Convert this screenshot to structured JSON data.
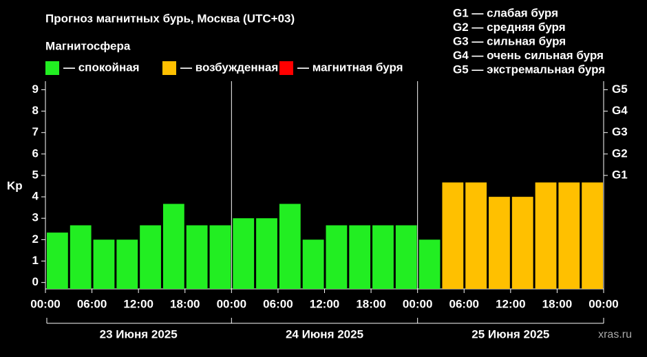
{
  "chart_data": {
    "type": "bar",
    "title": "Прогноз магнитных бурь, Москва (UTC+03)",
    "legend_title": "Магнитосфера",
    "legend": [
      {
        "color": "#22ee22",
        "label": "— спокойная"
      },
      {
        "color": "#ffc000",
        "label": "— возбужденная"
      },
      {
        "color": "#ff0000",
        "label": "— магнитная буря"
      }
    ],
    "scale_legend": [
      "G1 — слабая буря",
      "G2 — средняя буря",
      "G3 — сильная буря",
      "G4 — очень сильная буря",
      "G5 — экстремальная буря"
    ],
    "y_label": "Kp",
    "x": [
      0,
      3,
      6,
      9,
      12,
      15,
      18,
      21,
      24,
      27,
      30,
      33,
      36,
      39,
      42,
      45,
      48,
      51,
      54,
      57,
      60,
      63,
      66,
      69
    ],
    "values": [
      2.33,
      2.67,
      2,
      2,
      2.67,
      3.67,
      2.67,
      2.67,
      3,
      3,
      3.67,
      2,
      2.67,
      2.67,
      2.67,
      2.67,
      2,
      4.67,
      4.67,
      4,
      4,
      4.67,
      4.67,
      4.67
    ],
    "colors": [
      "#22ee22",
      "#22ee22",
      "#22ee22",
      "#22ee22",
      "#22ee22",
      "#22ee22",
      "#22ee22",
      "#22ee22",
      "#22ee22",
      "#22ee22",
      "#22ee22",
      "#22ee22",
      "#22ee22",
      "#22ee22",
      "#22ee22",
      "#22ee22",
      "#22ee22",
      "#ffc000",
      "#ffc000",
      "#ffc000",
      "#ffc000",
      "#ffc000",
      "#ffc000",
      "#ffc000"
    ],
    "xlim": [
      0,
      72
    ],
    "xticks": [
      {
        "value": 0,
        "label": "00:00"
      },
      {
        "value": 6,
        "label": "06:00"
      },
      {
        "value": 12,
        "label": "12:00"
      },
      {
        "value": 18,
        "label": "18:00"
      },
      {
        "value": 24,
        "label": "00:00"
      },
      {
        "value": 30,
        "label": "06:00"
      },
      {
        "value": 36,
        "label": "12:00"
      },
      {
        "value": 42,
        "label": "18:00"
      },
      {
        "value": 48,
        "label": "00:00"
      },
      {
        "value": 54,
        "label": "06:00"
      },
      {
        "value": 60,
        "label": "12:00"
      },
      {
        "value": 66,
        "label": "18:00"
      },
      {
        "value": 72,
        "label": "00:00"
      }
    ],
    "day_labels": [
      "23 Июня 2025",
      "24 Июня 2025",
      "25 Июня 2025"
    ],
    "ylim": [
      -0.3,
      9.4
    ],
    "yticks": [
      0,
      1,
      2,
      3,
      4,
      5,
      6,
      7,
      8,
      9
    ],
    "y2lim": [
      -0.3,
      9.4
    ],
    "y2ticks": [
      {
        "value": 5,
        "label": "G1"
      },
      {
        "value": 6,
        "label": "G2"
      },
      {
        "value": 7,
        "label": "G3"
      },
      {
        "value": 8,
        "label": "G4"
      },
      {
        "value": 9,
        "label": "G5"
      }
    ],
    "watermark": "xras.ru"
  }
}
